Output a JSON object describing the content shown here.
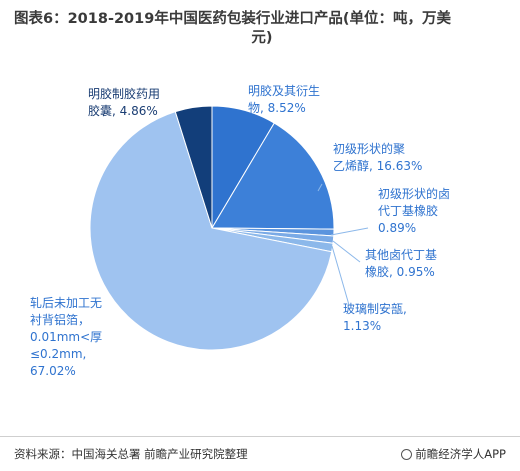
{
  "title_line1": "图表6：2018-2019年中国医药包装行业进口产品(单位：吨，万美",
  "title_line2": "元)",
  "source": "资料来源：中国海关总署 前瞻产业研究院整理",
  "brand": "前瞻经济学人APP",
  "colors": {
    "dark": "#123e7a",
    "blue": "#2f73cf",
    "mid": "#3d80d8",
    "light": "#9fc3f0",
    "label_dark": "#1a3d73",
    "label_blue": "#2f73cf"
  },
  "chart_data": {
    "type": "pie",
    "title": "",
    "slices": [
      {
        "name": "明胶及其衍生物",
        "value": 8.52,
        "label": "8.52%",
        "color": "#2f73cf"
      },
      {
        "name": "初级形状的聚乙烯醇",
        "value": 16.63,
        "label": "16.63%",
        "color": "#3d80d8"
      },
      {
        "name": "初级形状的卤代丁基橡胶",
        "value": 0.89,
        "label": "0.89%",
        "color": "#5b94de"
      },
      {
        "name": "其他卤代丁基橡胶",
        "value": 0.95,
        "label": "0.95%",
        "color": "#7aaae6"
      },
      {
        "name": "玻璃制安瓿",
        "value": 1.13,
        "label": "1.13%",
        "color": "#8cb8ea"
      },
      {
        "name": "轧后未加工无衬背铝箔，0.01mm<厚≤0.2mm",
        "value": 67.02,
        "label": "67.02%",
        "color": "#9fc3f0"
      },
      {
        "name": "明胶制胶药用胶囊",
        "value": 4.86,
        "label": "4.86%",
        "color": "#123e7a"
      }
    ]
  }
}
